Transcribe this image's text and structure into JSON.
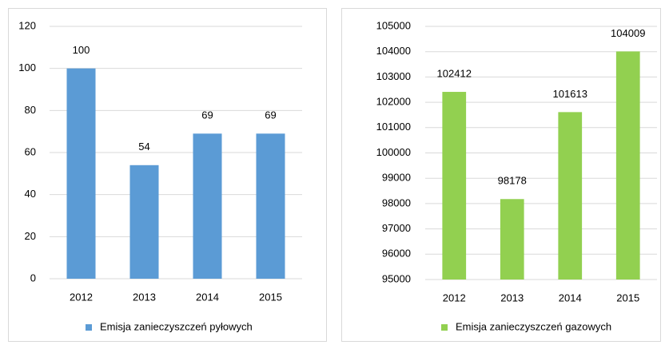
{
  "chart_data": [
    {
      "type": "bar",
      "categories": [
        "2012",
        "2013",
        "2014",
        "2015"
      ],
      "series": [
        {
          "name": "Emisja zanieczyszczeń pyłowych",
          "color": "#5b9bd5",
          "values": [
            100,
            54,
            69,
            69
          ]
        }
      ],
      "ylim": [
        0,
        120
      ],
      "yticks": [
        0,
        20,
        40,
        60,
        80,
        100,
        120
      ],
      "grid": true,
      "legend": "bottom"
    },
    {
      "type": "bar",
      "categories": [
        "2012",
        "2013",
        "2014",
        "2015"
      ],
      "series": [
        {
          "name": "Emisja zanieczyszczeń gazowych",
          "color": "#92d050",
          "values": [
            102412,
            98178,
            101613,
            104009
          ]
        }
      ],
      "ylim": [
        95000,
        105000
      ],
      "yticks": [
        95000,
        96000,
        97000,
        98000,
        99000,
        100000,
        101000,
        102000,
        103000,
        104000,
        105000
      ],
      "grid": true,
      "legend": "bottom"
    }
  ]
}
